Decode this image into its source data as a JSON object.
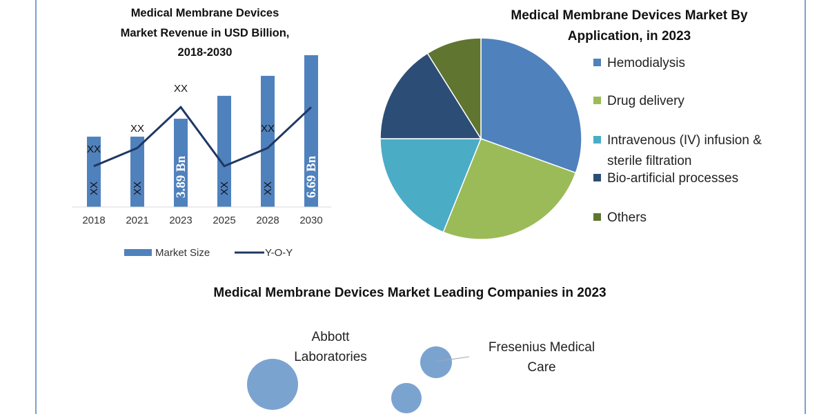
{
  "colors": {
    "bar": "#4f81bd",
    "line": "#1f3864",
    "border": "#4f81bd",
    "bubble": "#7ba3d0"
  },
  "chart_data": [
    {
      "type": "bar",
      "title_lines": [
        "Medical Membrane Devices",
        "Market Revenue in USD Billion,",
        "2018-2030"
      ],
      "categories": [
        "2018",
        "2021",
        "2023",
        "2025",
        "2028",
        "2030"
      ],
      "series": [
        {
          "name": "Market Size",
          "type": "bar",
          "values": [
            3.1,
            3.1,
            3.89,
            4.9,
            5.78,
            6.69
          ],
          "labels": [
            "XX",
            "XX",
            "3.89 Bn",
            "XX",
            "XX",
            "6.69 Bn"
          ]
        },
        {
          "name": "Y-O-Y",
          "type": "line",
          "values": [
            1.8,
            2.6,
            4.4,
            1.8,
            2.6,
            4.4
          ],
          "labels": [
            "XX",
            "XX",
            "XX",
            "",
            "XX",
            ""
          ]
        }
      ],
      "ylim": [
        0,
        7
      ],
      "grid": false,
      "legend": "bottom"
    },
    {
      "type": "pie",
      "title_lines": [
        "Medical Membrane Devices Market By",
        "Application, in 2023"
      ],
      "slices": [
        {
          "label_lines": [
            "Hemodialysis"
          ],
          "value": 30.5,
          "color": "#4f81bd"
        },
        {
          "label_lines": [
            "Drug delivery"
          ],
          "value": 25.6,
          "color": "#9bbb59"
        },
        {
          "label_lines": [
            "Intravenous (IV) infusion &",
            "sterile filtration"
          ],
          "value": 18.9,
          "color": "#4bacc6"
        },
        {
          "label_lines": [
            "Bio-artificial processes"
          ],
          "value": 16.1,
          "color": "#2c4d75"
        },
        {
          "label_lines": [
            "Others"
          ],
          "value": 8.9,
          "color": "#5f7530"
        }
      ],
      "legend": "right"
    },
    {
      "type": "scatter",
      "title": "Medical Membrane Devices Market Leading Companies in 2023",
      "bubbles": [
        {
          "label_lines": [
            "Abbott",
            "Laboratories"
          ]
        },
        {
          "label_lines": [
            "Fresenius Medical",
            "Care"
          ]
        },
        {
          "label_lines": []
        }
      ]
    }
  ]
}
